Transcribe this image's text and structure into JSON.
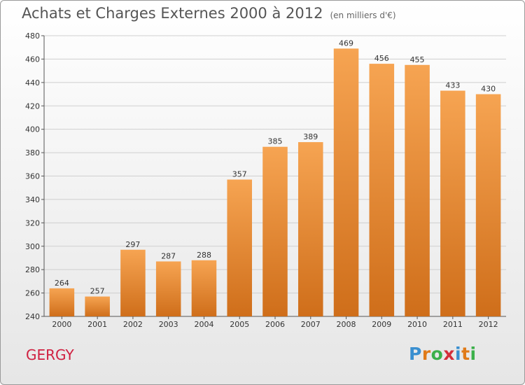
{
  "header": {
    "title": "Achats et Charges Externes 2000 à 2012",
    "unit": "(en milliers d'€)"
  },
  "footer": {
    "place": "GERGY",
    "logo_letters": [
      "P",
      "r",
      "o",
      "x",
      "i",
      "t",
      "i"
    ]
  },
  "colors": {
    "bar_light": "#f6a452",
    "bar_dark": "#cf6e1a",
    "place": "#d02040",
    "logo": [
      "#3a8fd0",
      "#e07a18",
      "#3cb04a",
      "#d42e3a",
      "#3a8fd0",
      "#e07a18",
      "#3cb04a"
    ]
  },
  "chart_data": {
    "type": "bar",
    "title": "Achats et Charges Externes 2000 à 2012",
    "subtitle": "(en milliers d'€)",
    "categories": [
      "2000",
      "2001",
      "2002",
      "2003",
      "2004",
      "2005",
      "2006",
      "2007",
      "2008",
      "2009",
      "2010",
      "2011",
      "2012"
    ],
    "values": [
      264,
      257,
      297,
      287,
      288,
      357,
      385,
      389,
      469,
      456,
      455,
      433,
      430
    ],
    "ylim": [
      240,
      480
    ],
    "yticks": [
      240,
      260,
      280,
      300,
      320,
      340,
      360,
      380,
      400,
      420,
      440,
      460,
      480
    ],
    "grid": true
  }
}
